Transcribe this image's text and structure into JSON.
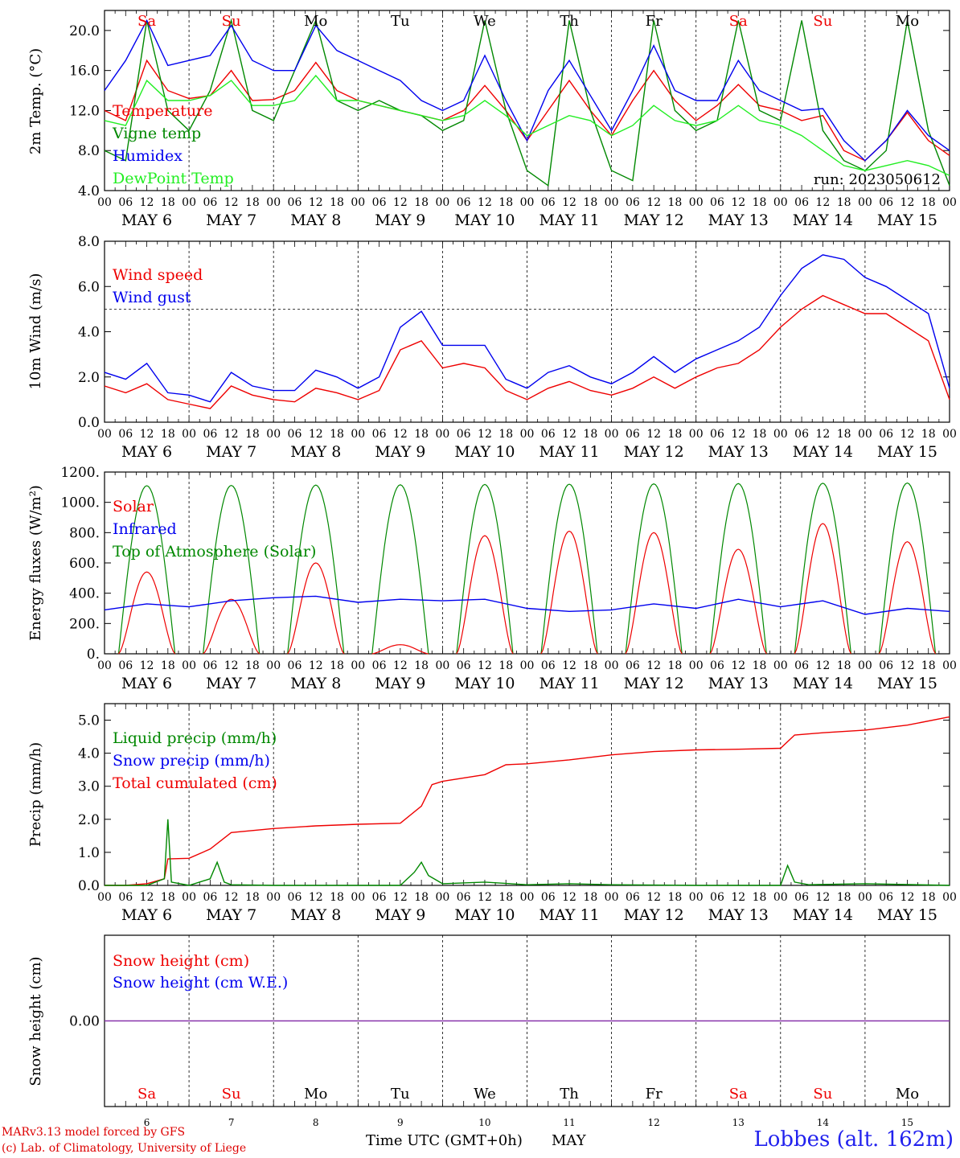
{
  "chart_data": [
    {
      "type": "line",
      "ylabel": "2m Temp. (°C)",
      "ylim": [
        4,
        22
      ],
      "yticks": [
        "4.0",
        "8.0",
        "12.0",
        "16.0",
        "20.0"
      ],
      "x_range_hours": [
        0,
        240
      ],
      "annotation": "run: 2023050612",
      "legend": [
        {
          "name": "Temperature",
          "color": "#ee0000"
        },
        {
          "name": "Vigne temp",
          "color": "#008800"
        },
        {
          "name": "Humidex",
          "color": "#0000ee"
        },
        {
          "name": "DewPoint Temp",
          "color": "#22ee22"
        }
      ],
      "series": [
        {
          "name": "Temperature",
          "color": "#ee0000",
          "x": [
            0,
            6,
            12,
            18,
            24,
            30,
            36,
            42,
            48,
            54,
            60,
            66,
            72,
            78,
            84,
            90,
            96,
            102,
            108,
            114,
            120,
            126,
            132,
            138,
            144,
            150,
            156,
            162,
            168,
            174,
            180,
            186,
            192,
            198,
            204,
            210,
            216,
            222,
            228,
            234,
            240
          ],
          "values": [
            12,
            11,
            17,
            14,
            13.2,
            13.5,
            16,
            13,
            13.1,
            14,
            16.8,
            14,
            13,
            12.5,
            12,
            11.5,
            11,
            12,
            14.5,
            12,
            9,
            12,
            15,
            12,
            9.5,
            13,
            16,
            13,
            11,
            12.5,
            14.6,
            12.5,
            12,
            11,
            11.5,
            8,
            7,
            9,
            11.8,
            9,
            7.5
          ]
        },
        {
          "name": "Vigne temp",
          "color": "#008800",
          "x": [
            0,
            6,
            12,
            18,
            24,
            30,
            36,
            42,
            48,
            54,
            60,
            66,
            72,
            78,
            84,
            90,
            96,
            102,
            108,
            114,
            120,
            126,
            132,
            138,
            144,
            150,
            156,
            162,
            168,
            174,
            180,
            186,
            192,
            198,
            204,
            210,
            216,
            222,
            228,
            234,
            240
          ],
          "values": [
            8,
            7,
            21,
            12,
            10,
            14,
            21,
            12,
            11,
            16,
            21,
            13,
            12,
            13,
            12,
            11.5,
            10,
            11,
            21,
            12,
            6,
            4.5,
            21,
            12,
            6,
            5,
            21,
            12,
            10,
            11,
            21,
            12,
            11,
            21,
            10,
            7,
            6,
            8,
            21,
            10,
            4.5
          ]
        },
        {
          "name": "Humidex",
          "color": "#0000ee",
          "x": [
            0,
            6,
            12,
            18,
            24,
            30,
            36,
            42,
            48,
            54,
            60,
            66,
            72,
            78,
            84,
            90,
            96,
            102,
            108,
            114,
            120,
            126,
            132,
            138,
            144,
            150,
            156,
            162,
            168,
            174,
            180,
            186,
            192,
            198,
            204,
            210,
            216,
            222,
            228,
            234,
            240
          ],
          "values": [
            14,
            17,
            21,
            16.5,
            17,
            17.5,
            20.5,
            17,
            16,
            16,
            20.5,
            18,
            17,
            16,
            15,
            13,
            12,
            13,
            17.5,
            13,
            9,
            14,
            17,
            13.5,
            10,
            14,
            18.5,
            14,
            13,
            13,
            17,
            14,
            13,
            12,
            12.2,
            9,
            7,
            9,
            12,
            9.5,
            8
          ]
        },
        {
          "name": "DewPoint Temp",
          "color": "#22ee22",
          "x": [
            0,
            6,
            12,
            18,
            24,
            30,
            36,
            42,
            48,
            54,
            60,
            66,
            72,
            78,
            84,
            90,
            96,
            102,
            108,
            114,
            120,
            126,
            132,
            138,
            144,
            150,
            156,
            162,
            168,
            174,
            180,
            186,
            192,
            198,
            204,
            210,
            216,
            222,
            228,
            234,
            240
          ],
          "values": [
            11,
            10.5,
            15,
            13,
            13,
            13.5,
            15,
            12.5,
            12.5,
            13,
            15.5,
            13,
            13,
            12.5,
            12,
            11.5,
            11,
            11.5,
            13,
            11.5,
            9.5,
            10.5,
            11.5,
            11,
            9.5,
            10.5,
            12.5,
            11,
            10.5,
            11,
            12.5,
            11,
            10.5,
            9.5,
            8,
            6.5,
            6,
            6.5,
            7,
            6.5,
            5.5
          ]
        }
      ]
    },
    {
      "type": "line",
      "ylabel": "10m Wind (m/s)",
      "ylim": [
        0,
        8
      ],
      "yticks": [
        "0.0",
        "2.0",
        "4.0",
        "6.0",
        "8.0"
      ],
      "reference_line": 5,
      "legend": [
        {
          "name": "Wind speed",
          "color": "#ee0000"
        },
        {
          "name": "Wind gust",
          "color": "#0000ee"
        }
      ],
      "series": [
        {
          "name": "Wind speed",
          "color": "#ee0000",
          "x": [
            0,
            6,
            12,
            18,
            24,
            30,
            36,
            42,
            48,
            54,
            60,
            66,
            72,
            78,
            84,
            90,
            96,
            102,
            108,
            114,
            120,
            126,
            132,
            138,
            144,
            150,
            156,
            162,
            168,
            174,
            180,
            186,
            192,
            198,
            204,
            210,
            216,
            222,
            228,
            234,
            240
          ],
          "values": [
            1.6,
            1.3,
            1.7,
            1.0,
            0.8,
            0.6,
            1.6,
            1.2,
            1.0,
            0.9,
            1.5,
            1.3,
            1.0,
            1.4,
            3.2,
            3.6,
            2.4,
            2.6,
            2.4,
            1.4,
            1.0,
            1.5,
            1.8,
            1.4,
            1.2,
            1.5,
            2.0,
            1.5,
            2.0,
            2.4,
            2.6,
            3.2,
            4.2,
            5.0,
            5.6,
            5.2,
            4.8,
            4.8,
            4.2,
            3.6,
            1.0
          ]
        },
        {
          "name": "Wind gust",
          "color": "#0000ee",
          "x": [
            0,
            6,
            12,
            18,
            24,
            30,
            36,
            42,
            48,
            54,
            60,
            66,
            72,
            78,
            84,
            90,
            96,
            102,
            108,
            114,
            120,
            126,
            132,
            138,
            144,
            150,
            156,
            162,
            168,
            174,
            180,
            186,
            192,
            198,
            204,
            210,
            216,
            222,
            228,
            234,
            240
          ],
          "values": [
            2.2,
            1.9,
            2.6,
            1.3,
            1.2,
            0.9,
            2.2,
            1.6,
            1.4,
            1.4,
            2.3,
            2.0,
            1.5,
            2.0,
            4.2,
            4.9,
            3.4,
            3.4,
            3.4,
            1.9,
            1.5,
            2.2,
            2.5,
            2.0,
            1.7,
            2.2,
            2.9,
            2.2,
            2.8,
            3.2,
            3.6,
            4.2,
            5.6,
            6.8,
            7.4,
            7.2,
            6.4,
            6.0,
            5.4,
            4.8,
            1.5
          ]
        }
      ]
    },
    {
      "type": "line",
      "ylabel": "Energy fluxes (W/m²)",
      "ylim": [
        0,
        1200
      ],
      "yticks": [
        "0.",
        "200.",
        "400.",
        "600.",
        "800.",
        "1000.",
        "1200."
      ],
      "legend": [
        {
          "name": "Solar",
          "color": "#ee0000"
        },
        {
          "name": "Infrared",
          "color": "#0000ee"
        },
        {
          "name": "Top of Atmosphere (Solar)",
          "color": "#008800"
        }
      ],
      "toa_peak_daily": [
        1110,
        1112,
        1114,
        1116,
        1118,
        1120,
        1122,
        1124,
        1126,
        1128
      ],
      "solar_peak_daily": [
        540,
        360,
        600,
        60,
        780,
        810,
        800,
        690,
        860,
        740
      ],
      "series": [
        {
          "name": "Infrared",
          "color": "#0000ee",
          "x": [
            0,
            12,
            24,
            36,
            48,
            60,
            72,
            84,
            96,
            108,
            120,
            132,
            144,
            156,
            168,
            180,
            192,
            204,
            216,
            228,
            240
          ],
          "values": [
            290,
            330,
            310,
            350,
            370,
            380,
            340,
            360,
            350,
            360,
            300,
            280,
            290,
            330,
            300,
            360,
            310,
            350,
            260,
            300,
            280
          ]
        }
      ]
    },
    {
      "type": "line",
      "ylabel": "Precip (mm/h)",
      "ylim": [
        0,
        5.5
      ],
      "yticks": [
        "0.0",
        "1.0",
        "2.0",
        "3.0",
        "4.0",
        "5.0"
      ],
      "legend": [
        {
          "name": "Liquid precip (mm/h)",
          "color": "#008800"
        },
        {
          "name": "Snow precip (mm/h)",
          "color": "#0000ee"
        },
        {
          "name": "Total cumulated (cm)",
          "color": "#ee0000"
        }
      ],
      "series": [
        {
          "name": "Total cumulated (cm)",
          "color": "#ee0000",
          "x": [
            0,
            6,
            12,
            17,
            18,
            24,
            30,
            36,
            48,
            60,
            72,
            84,
            90,
            93,
            96,
            108,
            114,
            120,
            132,
            144,
            156,
            168,
            180,
            192,
            196,
            204,
            216,
            228,
            240
          ],
          "values": [
            0,
            0,
            0.05,
            0.2,
            0.8,
            0.82,
            1.1,
            1.6,
            1.72,
            1.8,
            1.85,
            1.88,
            2.4,
            3.05,
            3.15,
            3.35,
            3.65,
            3.68,
            3.8,
            3.95,
            4.05,
            4.1,
            4.12,
            4.15,
            4.55,
            4.62,
            4.7,
            4.85,
            5.1
          ]
        },
        {
          "name": "Liquid precip (mm/h)",
          "color": "#008800",
          "x": [
            0,
            12,
            17,
            18,
            19,
            24,
            30,
            32,
            34,
            36,
            48,
            84,
            88,
            90,
            92,
            96,
            108,
            120,
            132,
            144,
            168,
            192,
            194,
            196,
            200,
            216,
            240
          ],
          "values": [
            0,
            0,
            0.2,
            2.0,
            0.1,
            0,
            0.2,
            0.7,
            0.1,
            0.02,
            0,
            0,
            0.4,
            0.7,
            0.3,
            0.05,
            0.1,
            0.02,
            0.05,
            0.02,
            0,
            0,
            0.6,
            0.1,
            0.02,
            0.05,
            0
          ]
        }
      ]
    },
    {
      "type": "line",
      "ylabel": "Snow height (cm)",
      "yticks": [
        "0.00"
      ],
      "legend": [
        {
          "name": "Snow height (cm)",
          "color": "#ee0000"
        },
        {
          "name": "Snow height (cm W.E.)",
          "color": "#0000ee"
        }
      ],
      "series": [
        {
          "name": "Snow height (cm)",
          "color": "#8833aa",
          "x": [
            0,
            240
          ],
          "values": [
            0,
            0
          ]
        }
      ]
    }
  ],
  "xaxis": {
    "hour_ticks": [
      "00",
      "06",
      "12",
      "18"
    ],
    "end_tick": "00",
    "date_labels": [
      "MAY  6",
      "MAY  7",
      "MAY  8",
      "MAY  9",
      "MAY 10",
      "MAY 11",
      "MAY 12",
      "MAY 13",
      "MAY 14",
      "MAY 15"
    ],
    "day_names": [
      "Sa",
      "Su",
      "Mo",
      "Tu",
      "We",
      "Th",
      "Fr",
      "Sa",
      "Su",
      "Mo"
    ],
    "weekend_flags": [
      true,
      true,
      false,
      false,
      false,
      false,
      false,
      true,
      true,
      false
    ],
    "day_numbers": [
      "6",
      "7",
      "8",
      "9",
      "10",
      "11",
      "12",
      "13",
      "14",
      "15"
    ],
    "title": "Time UTC (GMT+0h)",
    "month": "MAY"
  },
  "colors": {
    "weekend": "#ee0000",
    "weekday": "#000000",
    "axis": "#000000"
  },
  "footer": {
    "model": "MARv3.13 model forced by GFS",
    "credit": "(c) Lab. of Climatology, University of Liege",
    "station": "Lobbes (alt. 162m)"
  }
}
